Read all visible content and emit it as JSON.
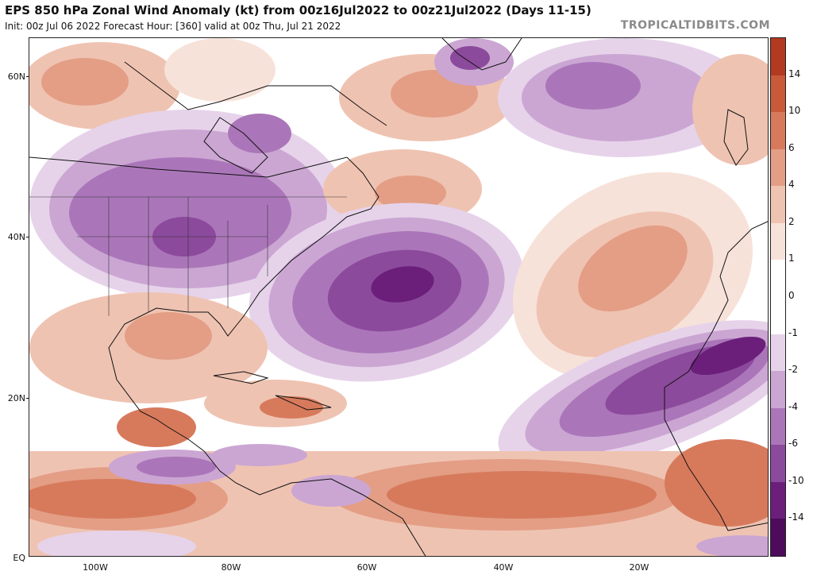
{
  "header": {
    "title": "EPS 850 hPa Zonal Wind Anomaly (kt) from 00z16Jul2022 to 00z21Jul2022 (Days 11-15)",
    "subtitle": "Init: 00z Jul 06 2022   Forecast Hour: [360]   valid at 00z Thu, Jul 21 2022",
    "brand": "TROPICALTIDBITS.COM"
  },
  "axes": {
    "lat_labels": [
      "60N",
      "40N",
      "20N",
      "EQ"
    ],
    "lon_labels": [
      "100W",
      "80W",
      "60W",
      "40W",
      "20W"
    ]
  },
  "colorbar": {
    "labels": [
      "14",
      "10",
      "6",
      "4",
      "2",
      "1",
      "0",
      "-1",
      "-2",
      "-4",
      "-6",
      "-10",
      "-14"
    ],
    "colors": [
      "#b23a20",
      "#c85a3a",
      "#d77a5c",
      "#e39e85",
      "#efc3b2",
      "#f7e2d9",
      "#ffffff",
      "#ffffff",
      "#e6d3ea",
      "#cba6d3",
      "#ab76b9",
      "#8c4a9c",
      "#6b1f7a",
      "#4e0b5c"
    ]
  },
  "map_colors": {
    "background": "#ffffff",
    "coast": "#111111"
  }
}
